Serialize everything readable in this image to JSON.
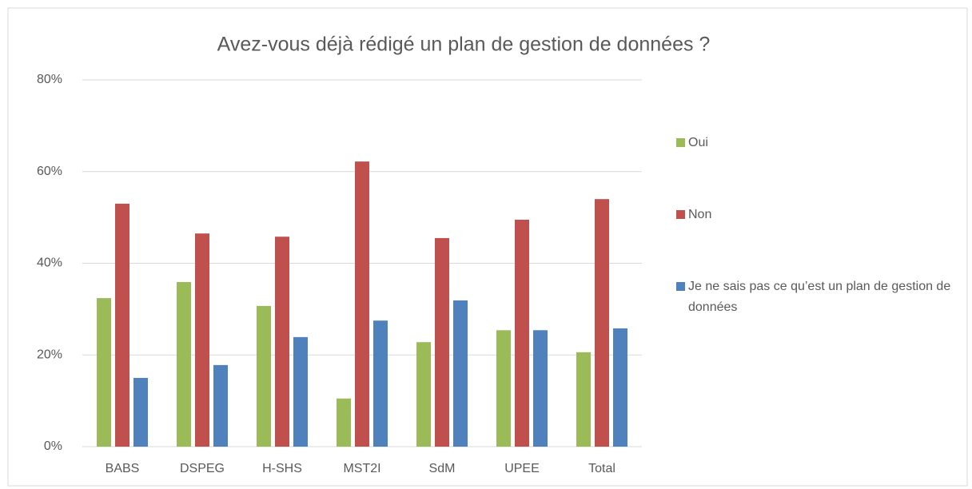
{
  "chart_data": {
    "type": "bar",
    "title": "Avez-vous déjà rédigé un plan de gestion de données ?",
    "categories": [
      "BABS",
      "DSPEG",
      "H-SHS",
      "MST2I",
      "SdM",
      "UPEE",
      "Total"
    ],
    "series": [
      {
        "name": "Oui",
        "color": "#9bbb59",
        "values": [
          32.4,
          35.9,
          30.7,
          10.5,
          22.8,
          25.4,
          20.6
        ]
      },
      {
        "name": "Non",
        "color": "#c0504d",
        "values": [
          53.0,
          46.5,
          45.8,
          62.2,
          45.5,
          49.5,
          54.0
        ]
      },
      {
        "name": "Je ne sais pas ce qu’est un plan de gestion de données",
        "color": "#4f81bd",
        "values": [
          15.0,
          17.8,
          23.9,
          27.5,
          31.9,
          25.4,
          25.8
        ]
      }
    ],
    "ylim": [
      0,
      80
    ],
    "yticks": [
      {
        "value": 0,
        "label": "0%"
      },
      {
        "value": 20,
        "label": "20%"
      },
      {
        "value": 40,
        "label": "40%"
      },
      {
        "value": 60,
        "label": "60%"
      },
      {
        "value": 80,
        "label": "80%"
      }
    ],
    "grid": true,
    "legend": "right"
  }
}
